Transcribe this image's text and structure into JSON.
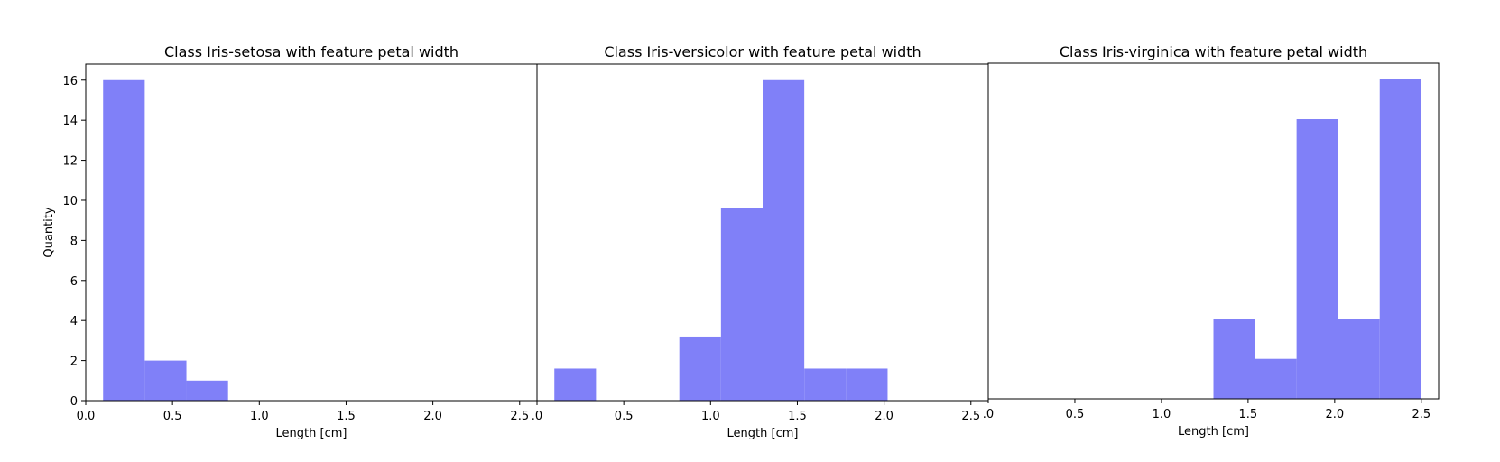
{
  "chart_data": [
    {
      "type": "bar",
      "title": "Class Iris-setosa with feature petal width",
      "xlabel": "Length [cm]",
      "ylabel": "Quantity",
      "xlim": [
        0.0,
        2.6
      ],
      "ylim": [
        0,
        16.8
      ],
      "xticks": [
        "0.0",
        "0.5",
        "1.0",
        "1.5",
        "2.0",
        "2.5"
      ],
      "yticks": [
        "0",
        "2",
        "4",
        "6",
        "8",
        "10",
        "12",
        "14",
        "16"
      ],
      "bins": [
        {
          "x0": 0.1,
          "x1": 0.34,
          "value": 16
        },
        {
          "x0": 0.34,
          "x1": 0.58,
          "value": 2
        },
        {
          "x0": 0.58,
          "x1": 0.82,
          "value": 1
        }
      ],
      "color": "#8080f8"
    },
    {
      "type": "bar",
      "title": "Class Iris-versicolor with feature petal width",
      "xlabel": "Length [cm]",
      "ylabel": "",
      "xlim": [
        0.0,
        2.6
      ],
      "ylim": [
        0,
        16.8
      ],
      "xticks": [
        ".0",
        "0.5",
        "1.0",
        "1.5",
        "2.0",
        "2.5"
      ],
      "yticks": [],
      "bins": [
        {
          "x0": 0.1,
          "x1": 0.34,
          "value": 1.6
        },
        {
          "x0": 0.82,
          "x1": 1.06,
          "value": 3.2
        },
        {
          "x0": 1.06,
          "x1": 1.3,
          "value": 9.6
        },
        {
          "x0": 1.3,
          "x1": 1.54,
          "value": 16
        },
        {
          "x0": 1.54,
          "x1": 1.78,
          "value": 1.6
        },
        {
          "x0": 1.78,
          "x1": 2.02,
          "value": 1.6
        }
      ],
      "color": "#8080f8"
    },
    {
      "type": "bar",
      "title": "Class Iris-virginica with feature petal width",
      "xlabel": "Length [cm]",
      "ylabel": "",
      "xlim": [
        0.0,
        2.6
      ],
      "ylim": [
        0,
        16.8
      ],
      "xticks": [
        ".0",
        "0.5",
        "1.0",
        "1.5",
        "2.0",
        "2.5"
      ],
      "yticks": [],
      "bins": [
        {
          "x0": 1.3,
          "x1": 1.54,
          "value": 4
        },
        {
          "x0": 1.54,
          "x1": 1.78,
          "value": 2
        },
        {
          "x0": 1.78,
          "x1": 2.02,
          "value": 14
        },
        {
          "x0": 2.02,
          "x1": 2.26,
          "value": 4
        },
        {
          "x0": 2.26,
          "x1": 2.5,
          "value": 16
        }
      ],
      "color": "#8080f8"
    }
  ]
}
